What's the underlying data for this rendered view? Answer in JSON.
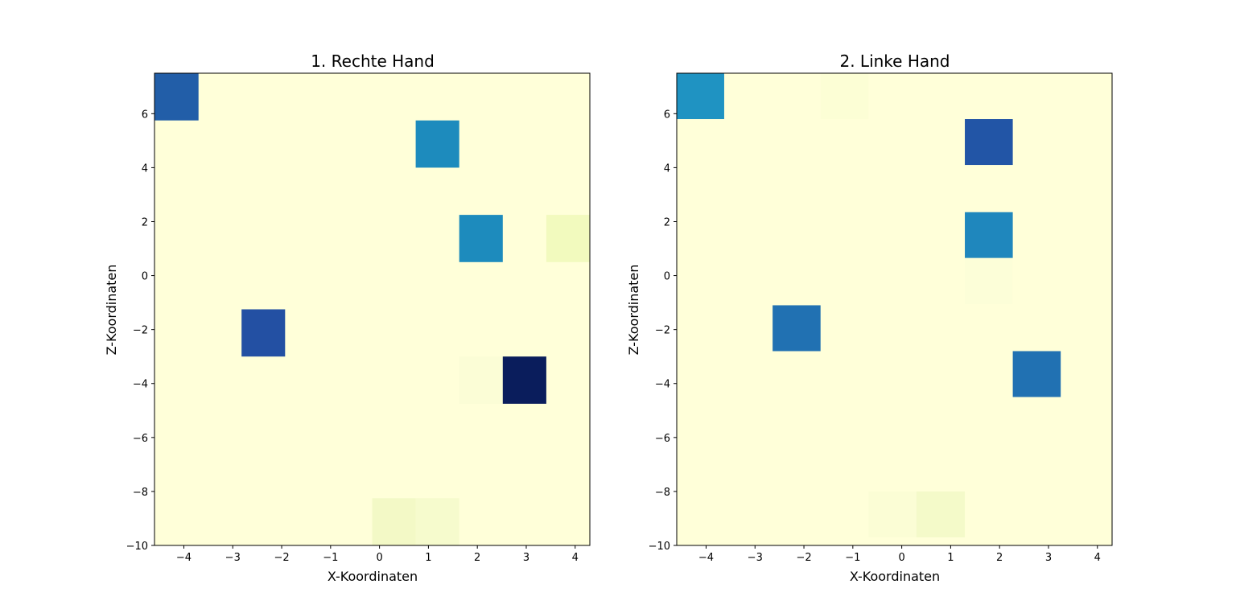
{
  "chart_data": [
    {
      "type": "heatmap",
      "title": "1. Rechte Hand",
      "xlabel": "X-Koordinaten",
      "ylabel": "Z-Koordinaten",
      "xlim": [
        -4.6,
        4.3
      ],
      "ylim": [
        -10,
        7.5
      ],
      "xticks": [
        "−4",
        "−3",
        "−2",
        "−1",
        "0",
        "1",
        "2",
        "3",
        "4"
      ],
      "yticks": [
        "−10",
        "−8",
        "−6",
        "−4",
        "−2",
        "0",
        "2",
        "4",
        "6"
      ],
      "background_color": "#ffffd9",
      "colormap": "YlGnBu",
      "cells": [
        {
          "x0": -4.6,
          "x1": -3.7,
          "y0": 5.75,
          "y1": 7.5,
          "value": 0.8,
          "color": "#225ea8"
        },
        {
          "x0": 0.74,
          "x1": 1.63,
          "y0": 4.0,
          "y1": 5.75,
          "value": 0.6,
          "color": "#1d8bbd"
        },
        {
          "x0": 1.63,
          "x1": 2.52,
          "y0": 0.5,
          "y1": 2.25,
          "value": 0.6,
          "color": "#1d8bbd"
        },
        {
          "x0": 3.41,
          "x1": 4.3,
          "y0": 0.5,
          "y1": 2.25,
          "value": 0.06,
          "color": "#f2fabe"
        },
        {
          "x0": -2.82,
          "x1": -1.93,
          "y0": -3.0,
          "y1": -1.25,
          "value": 0.82,
          "color": "#2350a3"
        },
        {
          "x0": 1.63,
          "x1": 2.52,
          "y0": -4.75,
          "y1": -3.0,
          "value": 0.02,
          "color": "#fbfdd6"
        },
        {
          "x0": 2.52,
          "x1": 3.41,
          "y0": -4.75,
          "y1": -3.0,
          "value": 1.0,
          "color": "#0a1d5c"
        },
        {
          "x0": -0.15,
          "x1": 0.74,
          "y0": -10.0,
          "y1": -8.25,
          "value": 0.06,
          "color": "#f3f9c6"
        },
        {
          "x0": 0.74,
          "x1": 1.63,
          "y0": -10.0,
          "y1": -8.25,
          "value": 0.04,
          "color": "#f6fbcd"
        }
      ]
    },
    {
      "type": "heatmap",
      "title": "2. Linke Hand",
      "xlabel": "X-Koordinaten",
      "ylabel": "Z-Koordinaten",
      "xlim": [
        -4.6,
        4.3
      ],
      "ylim": [
        -10,
        7.5
      ],
      "xticks": [
        "−4",
        "−3",
        "−2",
        "−1",
        "0",
        "1",
        "2",
        "3",
        "4"
      ],
      "yticks": [
        "−10",
        "−8",
        "−6",
        "−4",
        "−2",
        "0",
        "2",
        "4",
        "6"
      ],
      "background_color": "#ffffd9",
      "colormap": "YlGnBu",
      "cells": [
        {
          "x0": -4.6,
          "x1": -3.63,
          "y0": 5.8,
          "y1": 7.5,
          "value": 0.62,
          "color": "#1f93c2"
        },
        {
          "x0": -1.66,
          "x1": -0.68,
          "y0": 5.8,
          "y1": 7.5,
          "value": 0.02,
          "color": "#fcfed5"
        },
        {
          "x0": 1.29,
          "x1": 2.27,
          "y0": 4.1,
          "y1": 5.8,
          "value": 0.82,
          "color": "#2255a6"
        },
        {
          "x0": 1.29,
          "x1": 2.27,
          "y0": 0.65,
          "y1": 2.35,
          "value": 0.62,
          "color": "#1f87bd"
        },
        {
          "x0": 1.29,
          "x1": 2.27,
          "y0": -1.05,
          "y1": 0.65,
          "value": 0.02,
          "color": "#fcfed8"
        },
        {
          "x0": -2.64,
          "x1": -1.66,
          "y0": -2.8,
          "y1": -1.1,
          "value": 0.72,
          "color": "#2171b2"
        },
        {
          "x0": 2.27,
          "x1": 3.25,
          "y0": -4.5,
          "y1": -2.8,
          "value": 0.72,
          "color": "#2171b2"
        },
        {
          "x0": -0.68,
          "x1": 0.3,
          "y0": -9.7,
          "y1": -8.0,
          "value": 0.02,
          "color": "#fbfdd5"
        },
        {
          "x0": 0.3,
          "x1": 1.29,
          "y0": -9.7,
          "y1": -8.0,
          "value": 0.05,
          "color": "#f4fac9"
        }
      ]
    }
  ]
}
